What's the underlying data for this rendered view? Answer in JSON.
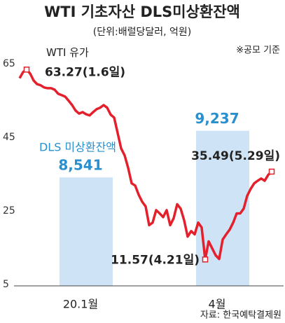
{
  "chart_data": {
    "type": "line_bar",
    "title": "WTI 기초자산 DLS미상환잔액",
    "subtitle": "(단위:배럴당달러, 억원)",
    "note": "※공모 기준",
    "source": "자료: 한국예탁결제원",
    "categories": [
      null,
      null,
      null,
      null,
      null,
      null,
      null,
      null,
      null,
      null,
      null,
      null,
      null,
      null,
      null,
      null,
      null,
      null,
      null,
      "20.1월",
      null,
      null,
      null,
      null,
      null,
      null,
      null,
      null,
      null,
      null,
      null,
      null,
      null,
      null,
      null,
      null,
      null,
      null,
      null,
      null,
      null,
      null,
      null,
      null,
      null,
      null,
      null,
      null,
      null,
      null,
      null,
      null,
      null,
      null,
      null,
      null,
      null,
      null,
      "4월",
      null,
      null,
      null,
      null,
      null,
      null,
      null,
      null,
      null,
      null,
      null,
      null,
      null,
      null
    ],
    "series": [
      {
        "name": "WTI 유가",
        "color": "#e3202b",
        "values": [
          60.9,
          62.6,
          63.27,
          62.2,
          60.3,
          59.3,
          59.0,
          58.4,
          58.2,
          58.2,
          57.8,
          56.7,
          56.3,
          55.9,
          54.8,
          53.6,
          52.1,
          51.3,
          51.7,
          51.1,
          50.8,
          51.7,
          52.5,
          52.9,
          53.6,
          52.9,
          51.0,
          50.2,
          46.0,
          41.8,
          39.9,
          36.5,
          32.3,
          31.7,
          29.2,
          27.3,
          26.0,
          20.9,
          21.6,
          25.0,
          24.1,
          23.1,
          25.0,
          20.9,
          22.8,
          26.6,
          25.4,
          22.2,
          17.8,
          19.3,
          18.4,
          21.6,
          20.3,
          11.57,
          16.5,
          14.6,
          12.7,
          11.7,
          17.0,
          18.4,
          19.7,
          21.6,
          24.1,
          24.1,
          25.4,
          28.9,
          30.8,
          32.3,
          33.0,
          33.6,
          33.0,
          34.6,
          35.49
        ],
        "value_labels": [
          null,
          null,
          "63.27(1.6일)",
          null,
          null,
          null,
          null,
          null,
          null,
          null,
          null,
          null,
          null,
          null,
          null,
          null,
          null,
          null,
          null,
          null,
          null,
          null,
          null,
          null,
          null,
          null,
          null,
          null,
          null,
          null,
          null,
          null,
          null,
          null,
          null,
          null,
          null,
          null,
          null,
          null,
          null,
          null,
          null,
          null,
          null,
          null,
          null,
          null,
          null,
          null,
          null,
          null,
          null,
          "11.57(4.21일)",
          null,
          null,
          null,
          null,
          null,
          null,
          null,
          null,
          null,
          null,
          null,
          null,
          null,
          null,
          null,
          null,
          null,
          null,
          "35.49(5.29일)"
        ]
      },
      {
        "name": "DLS 미상환잔액",
        "color": "#cfe3f6",
        "label_color": "#2a8fce",
        "axis": "y2",
        "values": [
          null,
          null,
          null,
          null,
          null,
          null,
          null,
          null,
          null,
          null,
          null,
          null,
          null,
          null,
          null,
          null,
          null,
          null,
          null,
          8541,
          null,
          null,
          null,
          null,
          null,
          null,
          null,
          null,
          null,
          null,
          null,
          null,
          null,
          null,
          null,
          null,
          null,
          null,
          null,
          null,
          null,
          null,
          null,
          null,
          null,
          null,
          null,
          null,
          null,
          null,
          null,
          null,
          null,
          null,
          null,
          null,
          null,
          null,
          9237,
          null,
          null,
          null,
          null,
          null,
          null,
          null,
          null,
          null,
          null,
          null,
          null,
          null,
          null
        ],
        "value_labels": [
          null,
          null,
          null,
          null,
          null,
          null,
          null,
          null,
          null,
          null,
          null,
          null,
          null,
          null,
          null,
          null,
          null,
          null,
          null,
          "8,541",
          null,
          null,
          null,
          null,
          null,
          null,
          null,
          null,
          null,
          null,
          null,
          null,
          null,
          null,
          null,
          null,
          null,
          null,
          null,
          null,
          null,
          null,
          null,
          null,
          null,
          null,
          null,
          null,
          null,
          null,
          null,
          null,
          null,
          null,
          null,
          null,
          null,
          null,
          "9,237",
          null,
          null,
          null,
          null,
          null,
          null,
          null,
          null,
          null,
          null,
          null,
          null,
          null,
          null
        ]
      }
    ],
    "ylim": [
      4,
      66
    ],
    "yticks": [
      5,
      25,
      45,
      65
    ],
    "y2lim": [
      6900,
      10300
    ]
  }
}
